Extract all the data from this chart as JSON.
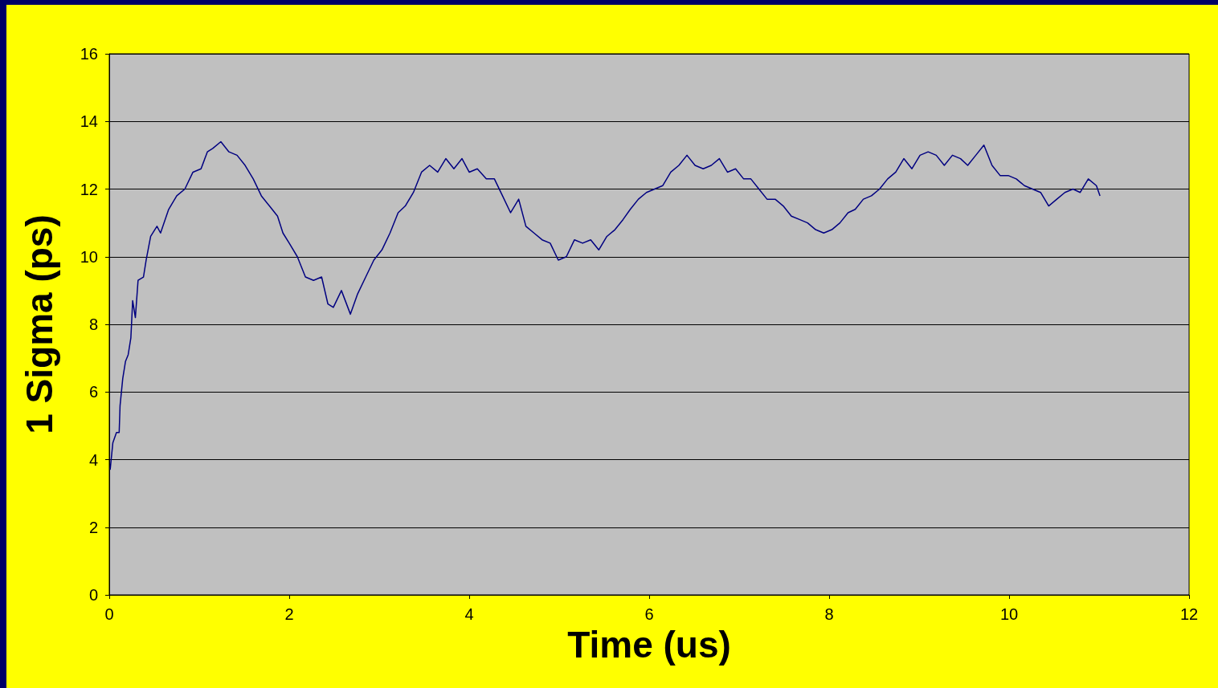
{
  "chart_data": {
    "type": "line",
    "xlabel": "Time (us)",
    "ylabel": "1 Sigma (ps)",
    "xlim": [
      0,
      12
    ],
    "xticks": [
      0,
      2,
      4,
      6,
      8,
      10,
      12
    ],
    "ylim": [
      0,
      16
    ],
    "yticks": [
      0,
      2,
      4,
      6,
      8,
      10,
      12,
      14,
      16
    ],
    "grid": "y",
    "marker": "none",
    "line_style": "solid",
    "series": [
      {
        "color": "#000080",
        "x": [
          0.01,
          0.04,
          0.08,
          0.11,
          0.12,
          0.15,
          0.18,
          0.21,
          0.24,
          0.26,
          0.29,
          0.32,
          0.38,
          0.41,
          0.46,
          0.53,
          0.57,
          0.66,
          0.75,
          0.84,
          0.93,
          1.02,
          1.09,
          1.15,
          1.24,
          1.33,
          1.42,
          1.51,
          1.6,
          1.69,
          1.78,
          1.87,
          1.93,
          2.0,
          2.09,
          2.18,
          2.27,
          2.36,
          2.43,
          2.49,
          2.58,
          2.68,
          2.76,
          2.85,
          2.94,
          3.03,
          3.12,
          3.21,
          3.29,
          3.38,
          3.47,
          3.56,
          3.65,
          3.74,
          3.83,
          3.92,
          4.0,
          4.09,
          4.19,
          4.28,
          4.37,
          4.46,
          4.55,
          4.63,
          4.72,
          4.81,
          4.9,
          4.99,
          5.08,
          5.17,
          5.26,
          5.35,
          5.44,
          5.53,
          5.62,
          5.71,
          5.79,
          5.88,
          5.97,
          6.06,
          6.15,
          6.24,
          6.33,
          6.42,
          6.51,
          6.6,
          6.69,
          6.78,
          6.87,
          6.96,
          7.05,
          7.13,
          7.22,
          7.31,
          7.4,
          7.49,
          7.58,
          7.67,
          7.76,
          7.85,
          7.94,
          8.03,
          8.12,
          8.21,
          8.29,
          8.38,
          8.47,
          8.56,
          8.65,
          8.74,
          8.83,
          8.92,
          9.01,
          9.1,
          9.19,
          9.28,
          9.37,
          9.46,
          9.54,
          9.63,
          9.72,
          9.81,
          9.9,
          9.99,
          10.08,
          10.17,
          10.26,
          10.35,
          10.44,
          10.53,
          10.62,
          10.71,
          10.79,
          10.88,
          10.97,
          11.01
        ],
        "values": [
          3.7,
          4.5,
          4.8,
          4.8,
          5.6,
          6.4,
          6.9,
          7.1,
          7.6,
          8.7,
          8.2,
          9.3,
          9.4,
          9.9,
          10.6,
          10.9,
          10.7,
          11.4,
          11.8,
          12.0,
          12.5,
          12.6,
          13.1,
          13.2,
          13.4,
          13.1,
          13.0,
          12.7,
          12.3,
          11.8,
          11.5,
          11.2,
          10.7,
          10.4,
          10.0,
          9.4,
          9.3,
          9.4,
          8.6,
          8.5,
          9.0,
          8.3,
          8.9,
          9.4,
          9.9,
          10.2,
          10.7,
          11.3,
          11.5,
          11.9,
          12.5,
          12.7,
          12.5,
          12.9,
          12.6,
          12.9,
          12.5,
          12.6,
          12.3,
          12.3,
          11.8,
          11.3,
          11.7,
          10.9,
          10.7,
          10.5,
          10.4,
          9.9,
          10.0,
          10.5,
          10.4,
          10.5,
          10.2,
          10.6,
          10.8,
          11.1,
          11.4,
          11.7,
          11.9,
          12.0,
          12.1,
          12.5,
          12.7,
          13.0,
          12.7,
          12.6,
          12.7,
          12.9,
          12.5,
          12.6,
          12.3,
          12.3,
          12.0,
          11.7,
          11.7,
          11.5,
          11.2,
          11.1,
          11.0,
          10.8,
          10.7,
          10.8,
          11.0,
          11.3,
          11.4,
          11.7,
          11.8,
          12.0,
          12.3,
          12.5,
          12.9,
          12.6,
          13.0,
          13.1,
          13.0,
          12.7,
          13.0,
          12.9,
          12.7,
          13.0,
          13.3,
          12.7,
          12.4,
          12.4,
          12.3,
          12.1,
          12.0,
          11.9,
          11.5,
          11.7,
          11.9,
          12.0,
          11.9,
          12.3,
          12.1,
          11.8
        ]
      }
    ]
  }
}
